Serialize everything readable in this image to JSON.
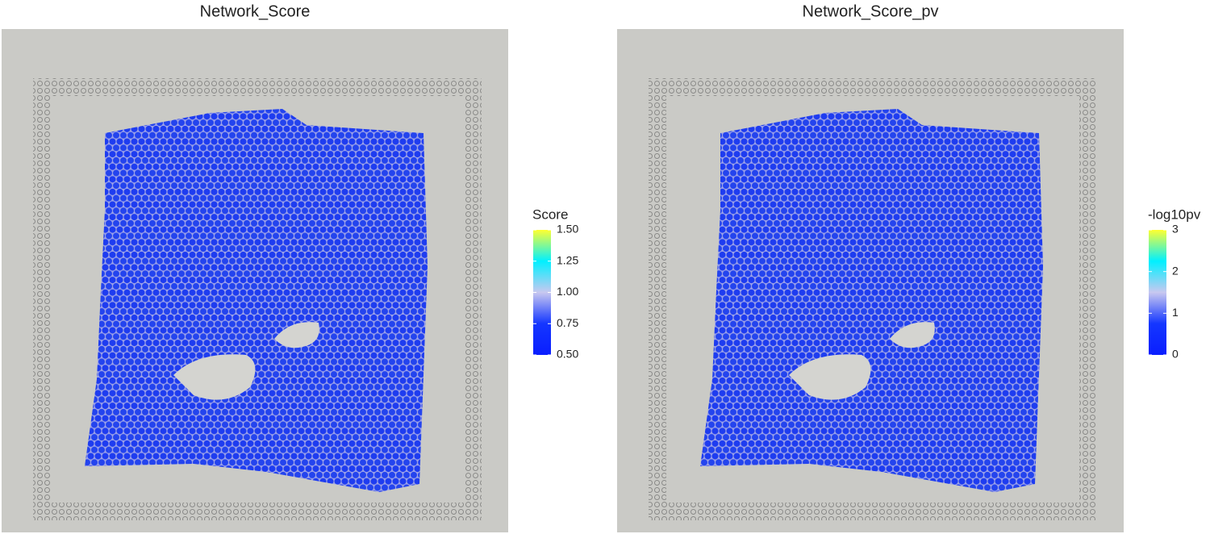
{
  "chart_data": [
    {
      "type": "spatial",
      "title": "Network_Score",
      "legend_title": "Score",
      "colors": [
        "#0a1eff",
        "#1436ff",
        "#c8c8f0",
        "#00f0ff",
        "#ffff30"
      ],
      "clim": [
        0.5,
        1.5
      ],
      "cticks": [
        {
          "value": 1.5,
          "label": "1.50"
        },
        {
          "value": 1.25,
          "label": "1.25"
        },
        {
          "value": 1.0,
          "label": "1.00"
        },
        {
          "value": 0.75,
          "label": "0.75"
        },
        {
          "value": 0.5,
          "label": "0.50"
        }
      ]
    },
    {
      "type": "spatial",
      "title": "Network_Score_pv",
      "legend_title": "-log10pv",
      "colors": [
        "#0a1eff",
        "#1436ff",
        "#c8c8f0",
        "#00f0ff",
        "#ffff30"
      ],
      "clim": [
        0,
        3
      ],
      "cticks": [
        3,
        2,
        1,
        0
      ]
    }
  ]
}
